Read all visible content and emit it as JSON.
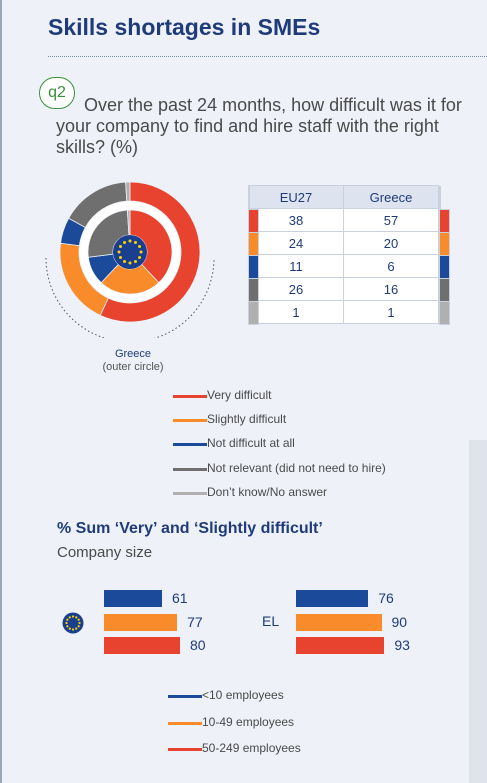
{
  "title": "Skills shortages in SMEs",
  "question": {
    "badge": "q2",
    "text": "Over the past 24 months, how difficult was it for your company to find and hire staff with the right skills? (%)"
  },
  "donut_caption": {
    "label": "Greece",
    "sublabel": "(outer circle)"
  },
  "colors": {
    "very": "#e8432e",
    "slightly": "#f98b2b",
    "not_difficult": "#1b4a9b",
    "not_relevant": "#6f6f6f",
    "dont_know": "#b0b0b0"
  },
  "chart_data": [
    {
      "type": "pie",
      "categories": [
        "Very difficult",
        "Slightly difficult",
        "Not difficult at all",
        "Not relevant (did not need to hire)",
        "Don't know/No answer"
      ],
      "series": [
        {
          "name": "EU27",
          "values": [
            38,
            24,
            11,
            26,
            1
          ]
        },
        {
          "name": "Greece",
          "values": [
            57,
            20,
            6,
            16,
            1
          ]
        }
      ]
    },
    {
      "type": "bar",
      "title": "% Sum ‘Very’ and ‘Slightly difficult’",
      "subtitle": "Company size",
      "categories": [
        "<10 employees",
        "10-49 employees",
        "50-249 employees"
      ],
      "series": [
        {
          "name": "EU27",
          "values": [
            61,
            77,
            80
          ]
        },
        {
          "name": "EL",
          "values": [
            76,
            90,
            93
          ]
        }
      ]
    }
  ],
  "table": {
    "headers": [
      "EU27",
      "Greece"
    ],
    "rows": [
      {
        "eu": "38",
        "gr": "57"
      },
      {
        "eu": "24",
        "gr": "20"
      },
      {
        "eu": "11",
        "gr": "6"
      },
      {
        "eu": "26",
        "gr": "16"
      },
      {
        "eu": "1",
        "gr": "1"
      }
    ]
  },
  "legend": [
    "Very difficult",
    "Slightly difficult",
    "Not difficult at all",
    "Not relevant (did not need to hire)",
    "Don’t know/No answer"
  ],
  "size_chart": {
    "title": "% Sum ‘Very’ and ‘Slightly difficult’",
    "caption": "Company size",
    "el_label": "EL",
    "eu_values": [
      "61",
      "77",
      "80"
    ],
    "el_values": [
      "76",
      "90",
      "93"
    ],
    "legend": [
      "<10 employees",
      "10-49 employees",
      "50-249 employees"
    ]
  }
}
